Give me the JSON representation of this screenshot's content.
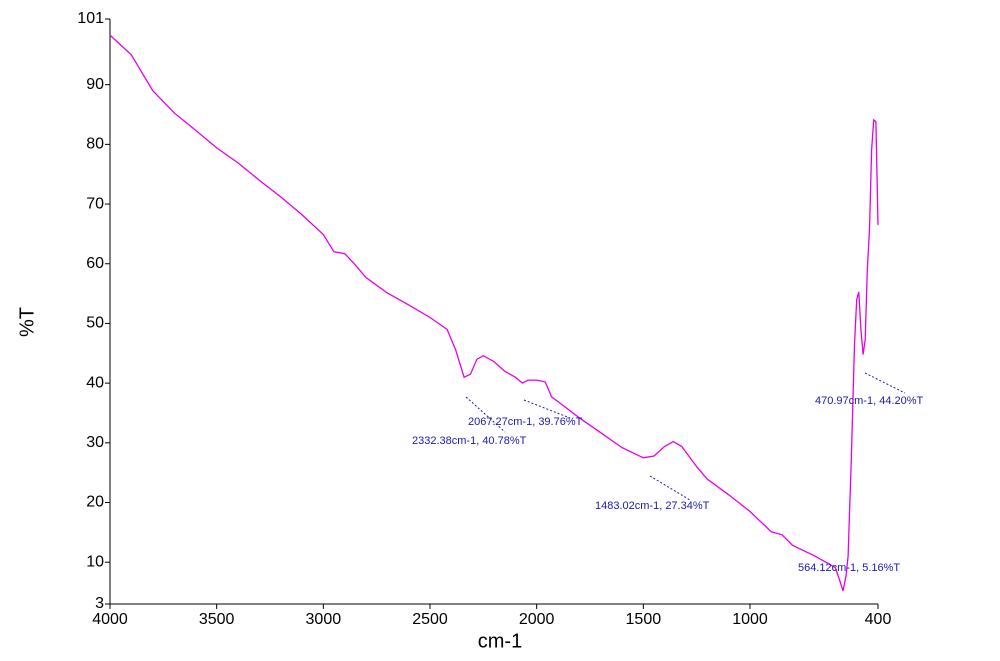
{
  "chart_data": {
    "type": "line",
    "x_label": "cm-1",
    "y_label": "%T",
    "xlim": [
      4000,
      400
    ],
    "ylim": [
      3,
      101
    ],
    "xticks": [
      4000,
      3500,
      3000,
      2500,
      2000,
      1500,
      1000,
      400
    ],
    "yticks": [
      3,
      10,
      20,
      30,
      40,
      50,
      60,
      70,
      80,
      90,
      101
    ],
    "grid": false,
    "series": [
      {
        "color": "#e600e6",
        "x": [
          4000,
          3900,
          3800,
          3700,
          3600,
          3500,
          3400,
          3300,
          3200,
          3100,
          3000,
          2950,
          2900,
          2850,
          2800,
          2700,
          2600,
          2500,
          2420,
          2380,
          2340,
          2310,
          2280,
          2250,
          2200,
          2150,
          2100,
          2067,
          2040,
          2000,
          1960,
          1930,
          1900,
          1800,
          1700,
          1600,
          1500,
          1450,
          1400,
          1360,
          1320,
          1250,
          1200,
          1100,
          1000,
          900,
          850,
          800,
          700,
          650,
          600,
          580,
          564,
          550,
          540,
          525,
          510,
          500,
          490,
          480,
          470,
          460,
          450,
          440,
          430,
          420,
          410,
          405,
          400
        ],
        "values": [
          98.3,
          95,
          89,
          85.3,
          82.4,
          79.4,
          76.9,
          74,
          71.2,
          68.2,
          64.9,
          62,
          61.7,
          59.8,
          57.7,
          55.1,
          53.1,
          51,
          49,
          45.6,
          41,
          41.5,
          44,
          44.6,
          43.6,
          42,
          41,
          40,
          40.5,
          40.5,
          40.2,
          37.7,
          36.9,
          34.2,
          31.7,
          29.2,
          27.5,
          27.8,
          29.4,
          30.2,
          29.4,
          26,
          23.9,
          21.3,
          18.5,
          15.1,
          14.6,
          12.8,
          11.1,
          10.1,
          9.1,
          7,
          5.2,
          7.7,
          11,
          27.2,
          46.5,
          54,
          55.3,
          49,
          44.8,
          47.3,
          59,
          65.7,
          79,
          84.1,
          83.8,
          75.7,
          66.5
        ]
      }
    ],
    "annotations": [
      "2067.27cm-1, 39.76%T",
      "2332.38cm-1, 40.78%T",
      "1483.02cm-1, 27.34%T",
      "564.12cm-1, 5.16%T",
      "470.97cm-1, 44.20%T"
    ]
  }
}
